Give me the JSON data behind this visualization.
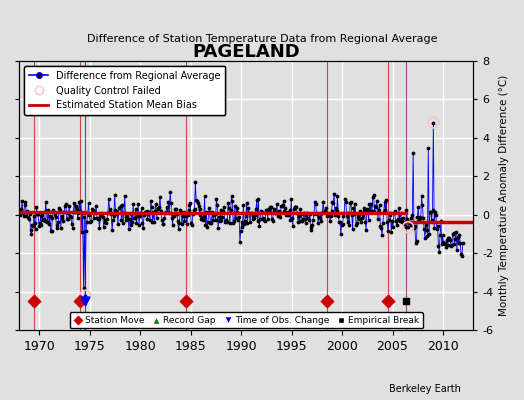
{
  "title": "PAGELAND",
  "subtitle": "Difference of Station Temperature Data from Regional Average",
  "ylabel_right": "Monthly Temperature Anomaly Difference (°C)",
  "xlim": [
    1968,
    2013
  ],
  "ylim": [
    -6,
    8
  ],
  "yticks": [
    -6,
    -4,
    -2,
    0,
    2,
    4,
    6,
    8
  ],
  "xticks": [
    1970,
    1975,
    1980,
    1985,
    1990,
    1995,
    2000,
    2005,
    2010
  ],
  "background_color": "#e0e0e0",
  "plot_bg_color": "#e0e0e0",
  "grid_color": "white",
  "station_move_years": [
    1969.5,
    1974.0,
    1984.5,
    1998.5,
    2004.5
  ],
  "station_move_color": "#cc0000",
  "obs_change_years": [
    1974.5
  ],
  "obs_change_color": "blue",
  "qc_failed_years": [
    1974.5,
    2006.5,
    2009.0
  ],
  "qc_failed_color": "pink",
  "empirical_break_years": [
    2006.3
  ],
  "bias_segments": [
    {
      "x_start": 1968,
      "x_end": 1974.5,
      "bias": 0.15
    },
    {
      "x_start": 1974.5,
      "x_end": 1984.5,
      "bias": 0.1
    },
    {
      "x_start": 1984.5,
      "x_end": 2006.3,
      "bias": 0.1
    },
    {
      "x_start": 2006.3,
      "x_end": 2013,
      "bias": -0.35
    }
  ],
  "bias_color": "#cc0000",
  "data_line_color": "blue",
  "data_dot_color": "black",
  "watermark": "Berkeley Earth",
  "seed": 42
}
